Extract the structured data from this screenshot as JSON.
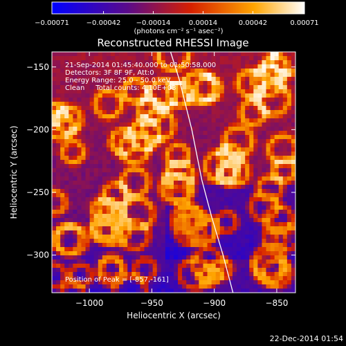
{
  "chart_data": {
    "type": "heatmap",
    "title": "Reconstructed RHESSI Image",
    "xlabel": "Heliocentric X (arcsec)",
    "ylabel": "Heliocentric Y (arcsec)",
    "xlim": [
      -1030,
      -835
    ],
    "ylim": [
      -330,
      -138
    ],
    "x_ticks": [
      -1000,
      -950,
      -900,
      -850
    ],
    "x_tick_labels": [
      "−1000",
      "−950",
      "−900",
      "−850"
    ],
    "y_ticks": [
      -150,
      -200,
      -250,
      -300
    ],
    "y_tick_labels": [
      "−150",
      "−200",
      "−250",
      "−300"
    ],
    "colorbar": {
      "ticks": [
        -0.00071,
        -0.00042,
        -0.00014,
        0.00014,
        0.00042,
        0.00071
      ],
      "tick_labels": [
        "−0.00071",
        "−0.00042",
        "−0.00014",
        "0.00014",
        "0.00042",
        "0.00071"
      ],
      "units_label": "(photons cm⁻² s⁻¹ asec⁻²)",
      "colormap": [
        "#0000ff",
        "#6a0d83",
        "#d62000",
        "#ffa500",
        "#ffffff"
      ]
    },
    "annotations": [
      "21-Sep-2014 01:45:40.000 to 01:50:58.000",
      "Detectors: 3F 8F 9F, Att:0",
      "Energy Range: 25.0 - 50.0 keV",
      "Clean     Total counts: 4.10E+03"
    ],
    "peak_label": "Position of Peak = [-857,-161]",
    "peak": [
      -857,
      -161
    ],
    "limb_curve": [
      [
        -935,
        -138
      ],
      [
        -928,
        -160
      ],
      [
        -918,
        -200
      ],
      [
        -910,
        -240
      ],
      [
        -902,
        -270
      ],
      [
        -893,
        -300
      ],
      [
        -885,
        -330
      ]
    ]
  },
  "footer_date": "22-Dec-2014 01:54"
}
